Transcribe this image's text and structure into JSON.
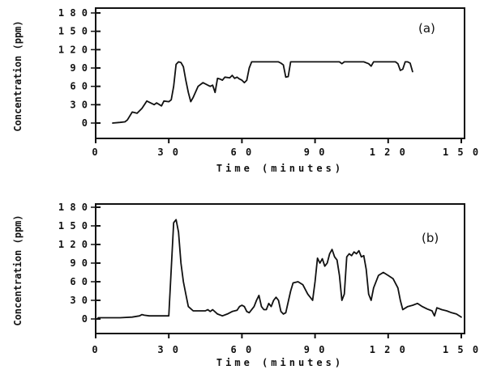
{
  "chart_data": [
    {
      "type": "line",
      "panel_label": "(a)",
      "xlabel": "Time (minutes)",
      "ylabel": "Concentration (ppm)",
      "xlim": [
        0,
        150
      ],
      "ylim": [
        0,
        180
      ],
      "xticks": [
        0,
        30,
        60,
        90,
        120,
        150
      ],
      "yticks": [
        0,
        30,
        60,
        90,
        120,
        150,
        180
      ],
      "xtick_labels": [
        "0",
        "3 0",
        "6 0",
        "9 0",
        "1 2 0",
        "1 5 0"
      ],
      "ytick_labels": [
        "0",
        "3 0",
        "6 0",
        "9 0",
        "1 2 0",
        "1 5 0",
        "1 8 0"
      ],
      "series": [
        {
          "x": [
            7,
            10,
            12,
            13,
            15,
            17,
            19,
            21,
            22,
            24,
            25,
            27,
            28,
            30,
            31,
            32,
            33,
            34,
            35,
            36,
            37,
            38,
            39,
            40,
            42,
            44,
            46,
            47,
            48,
            49,
            50,
            51,
            52,
            53,
            55,
            56,
            57,
            58,
            59,
            60,
            61,
            62,
            63,
            64,
            65,
            66,
            70,
            75,
            76,
            77,
            78,
            79,
            80,
            85,
            90,
            95,
            100,
            101,
            102,
            105,
            110,
            112,
            113,
            114,
            115,
            120,
            123,
            124,
            125,
            126,
            127,
            128,
            129,
            130
          ],
          "y": [
            0,
            1,
            2,
            5,
            18,
            16,
            24,
            36,
            34,
            30,
            33,
            28,
            36,
            35,
            38,
            60,
            96,
            100,
            99,
            92,
            70,
            50,
            35,
            42,
            60,
            66,
            62,
            60,
            62,
            50,
            73,
            72,
            70,
            75,
            74,
            78,
            73,
            75,
            72,
            70,
            66,
            70,
            90,
            100,
            100,
            100,
            100,
            100,
            98,
            95,
            75,
            76,
            100,
            100,
            100,
            100,
            100,
            97,
            100,
            100,
            100,
            97,
            93,
            100,
            100,
            100,
            100,
            97,
            86,
            88,
            100,
            100,
            98,
            84
          ]
        }
      ]
    },
    {
      "type": "line",
      "panel_label": "(b)",
      "xlabel": "Time (minutes)",
      "ylabel": "Concentration (ppm)",
      "xlim": [
        0,
        150
      ],
      "ylim": [
        0,
        180
      ],
      "xticks": [
        0,
        30,
        60,
        90,
        120,
        150
      ],
      "yticks": [
        0,
        30,
        60,
        90,
        120,
        150,
        180
      ],
      "xtick_labels": [
        "0",
        "3 0",
        "6 0",
        "9 0",
        "1 2 0",
        "1 5 0"
      ],
      "ytick_labels": [
        "0",
        "3 0",
        "6 0",
        "9 0",
        "1 2 0",
        "1 5 0",
        "1 8 0"
      ],
      "series": [
        {
          "x": [
            1,
            5,
            10,
            15,
            18,
            19,
            20,
            22,
            25,
            30,
            31,
            32,
            33,
            34,
            35,
            36,
            37,
            38,
            40,
            45,
            46,
            47,
            48,
            50,
            52,
            54,
            56,
            58,
            59,
            60,
            61,
            62,
            63,
            65,
            66,
            67,
            68,
            69,
            70,
            71,
            72,
            73,
            74,
            75,
            76,
            77,
            78,
            80,
            81,
            83,
            85,
            87,
            89,
            90,
            91,
            92,
            93,
            94,
            95,
            96,
            97,
            98,
            99,
            100,
            101,
            102,
            103,
            104,
            105,
            106,
            107,
            108,
            109,
            110,
            111,
            112,
            113,
            114,
            116,
            118,
            120,
            122,
            124,
            125,
            126,
            128,
            130,
            132,
            134,
            136,
            138,
            139,
            140,
            142,
            144,
            146,
            148,
            150
          ],
          "y": [
            2,
            2,
            2,
            3,
            5,
            7,
            6,
            5,
            5,
            5,
            80,
            155,
            160,
            140,
            90,
            60,
            40,
            20,
            13,
            13,
            15,
            12,
            15,
            8,
            5,
            8,
            12,
            14,
            20,
            22,
            20,
            12,
            10,
            20,
            30,
            38,
            20,
            15,
            15,
            25,
            20,
            30,
            35,
            30,
            12,
            8,
            10,
            45,
            58,
            60,
            55,
            40,
            30,
            60,
            98,
            90,
            97,
            85,
            90,
            105,
            112,
            100,
            95,
            70,
            30,
            40,
            100,
            105,
            102,
            108,
            105,
            110,
            100,
            102,
            80,
            40,
            30,
            50,
            70,
            75,
            70,
            65,
            50,
            30,
            15,
            20,
            22,
            25,
            20,
            16,
            13,
            5,
            18,
            15,
            13,
            10,
            8,
            3
          ]
        }
      ]
    }
  ]
}
